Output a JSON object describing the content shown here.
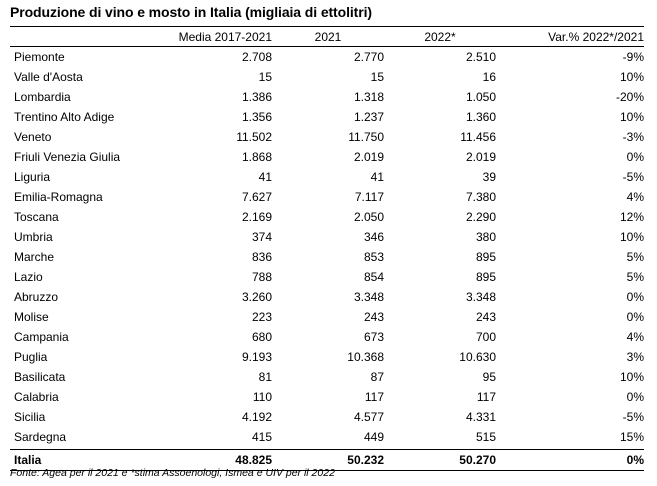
{
  "title": "Produzione di vino e mosto in Italia (migliaia di ettolitri)",
  "headers": [
    "",
    "Media 2017-2021",
    "2021",
    "2022*",
    "Var.% 2022*/2021"
  ],
  "rows": [
    [
      "Piemonte",
      "2.708",
      "2.770",
      "2.510",
      "-9%"
    ],
    [
      "Valle d'Aosta",
      "15",
      "15",
      "16",
      "10%"
    ],
    [
      "Lombardia",
      "1.386",
      "1.318",
      "1.050",
      "-20%"
    ],
    [
      "Trentino Alto Adige",
      "1.356",
      "1.237",
      "1.360",
      "10%"
    ],
    [
      "Veneto",
      "11.502",
      "11.750",
      "11.456",
      "-3%"
    ],
    [
      "Friuli Venezia Giulia",
      "1.868",
      "2.019",
      "2.019",
      "0%"
    ],
    [
      "Liguria",
      "41",
      "41",
      "39",
      "-5%"
    ],
    [
      "Emilia-Romagna",
      "7.627",
      "7.117",
      "7.380",
      "4%"
    ],
    [
      "Toscana",
      "2.169",
      "2.050",
      "2.290",
      "12%"
    ],
    [
      "Umbria",
      "374",
      "346",
      "380",
      "10%"
    ],
    [
      "Marche",
      "836",
      "853",
      "895",
      "5%"
    ],
    [
      "Lazio",
      "788",
      "854",
      "895",
      "5%"
    ],
    [
      "Abruzzo",
      "3.260",
      "3.348",
      "3.348",
      "0%"
    ],
    [
      "Molise",
      "223",
      "243",
      "243",
      "0%"
    ],
    [
      "Campania",
      "680",
      "673",
      "700",
      "4%"
    ],
    [
      "Puglia",
      "9.193",
      "10.368",
      "10.630",
      "3%"
    ],
    [
      "Basilicata",
      "81",
      "87",
      "95",
      "10%"
    ],
    [
      "Calabria",
      "110",
      "117",
      "117",
      "0%"
    ],
    [
      "Sicilia",
      "4.192",
      "4.577",
      "4.331",
      "-5%"
    ],
    [
      "Sardegna",
      "415",
      "449",
      "515",
      "15%"
    ]
  ],
  "total": [
    "Italia",
    "48.825",
    "50.232",
    "50.270",
    "0%"
  ],
  "source": "Fonte: Agea per il 2021 e *stima Assoenologi, Ismea e UIV per il 2022"
}
